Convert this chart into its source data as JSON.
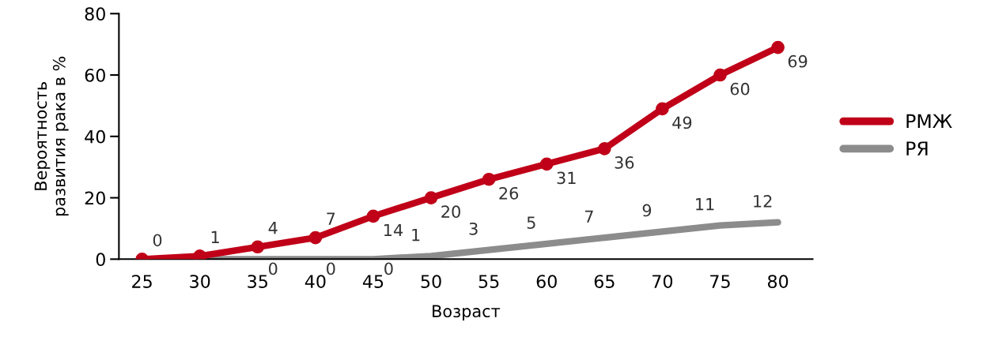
{
  "chart_data": {
    "type": "line",
    "xlabel": "Возраст",
    "ylabel": "Вероятность\nразвития рака в %",
    "categories": [
      "25",
      "30",
      "35",
      "40",
      "45",
      "50",
      "55",
      "60",
      "65",
      "70",
      "75",
      "80"
    ],
    "series": [
      {
        "name": "РМЖ",
        "color": "#c00018",
        "marker": "circle",
        "values": [
          0,
          1,
          4,
          7,
          14,
          20,
          26,
          31,
          36,
          49,
          60,
          69
        ],
        "value_labels": [
          "0",
          "1",
          "4",
          "7",
          "14",
          "20",
          "26",
          "31",
          "36",
          "49",
          "60",
          "69"
        ]
      },
      {
        "name": "РЯ",
        "color": "#8c8c8c",
        "marker": "none",
        "values": [
          0,
          0,
          0,
          0,
          0,
          1,
          3,
          5,
          7,
          9,
          11,
          12
        ],
        "value_labels": [
          null,
          null,
          "0",
          "0",
          "0",
          "1",
          "3",
          "5",
          "7",
          "9",
          "11",
          "12"
        ]
      }
    ],
    "ylim": [
      0,
      80
    ],
    "yticks": [
      0,
      20,
      40,
      60,
      80
    ],
    "grid": false,
    "legend": "right"
  }
}
